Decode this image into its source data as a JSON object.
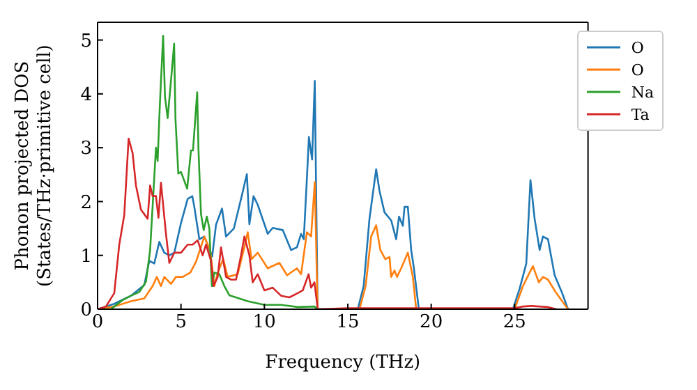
{
  "chart_data": {
    "type": "line",
    "xlabel": "Frequency (THz)",
    "ylabel": "Phonon projected DOS\n(States/THz·primitive cell)",
    "xlim": [
      0,
      29.4
    ],
    "ylim": [
      0,
      5.33
    ],
    "xticks": [
      0,
      5,
      10,
      15,
      20,
      25
    ],
    "yticks": [
      0,
      1,
      2,
      3,
      4,
      5
    ],
    "legend": "top right",
    "line_style": "solid",
    "marker": "none",
    "series": [
      {
        "name": "O",
        "color": "#1f77b4",
        "x": [
          0,
          1,
          2,
          2.8,
          3.1,
          3.4,
          3.7,
          4.0,
          4.3,
          4.6,
          5.0,
          5.4,
          5.68,
          5.8,
          6.1,
          6.4,
          6.87,
          7.1,
          7.46,
          7.7,
          8.17,
          8.64,
          8.95,
          9.1,
          9.35,
          9.6,
          10.2,
          10.5,
          11.1,
          11.6,
          11.95,
          12.2,
          12.36,
          12.55,
          12.67,
          12.86,
          13.02,
          13.19,
          15.6,
          15.95,
          16.3,
          16.7,
          16.9,
          17.2,
          17.6,
          17.9,
          18.07,
          18.3,
          18.4,
          18.6,
          18.8,
          18.95,
          19.26,
          24.9,
          25.3,
          25.7,
          25.95,
          26.2,
          26.5,
          26.7,
          27.0,
          27.4,
          27.85,
          28.2
        ],
        "values": [
          0,
          0.1,
          0.25,
          0.45,
          0.9,
          0.85,
          1.25,
          1.05,
          1.0,
          1.05,
          1.6,
          2.05,
          2.1,
          1.9,
          1.3,
          1.35,
          0.98,
          1.57,
          1.87,
          1.35,
          1.5,
          2.1,
          2.51,
          1.58,
          2.1,
          1.94,
          1.4,
          1.51,
          1.47,
          1.1,
          1.15,
          1.4,
          1.3,
          2.44,
          3.2,
          2.78,
          4.24,
          0,
          0,
          0.43,
          1.68,
          2.6,
          2.2,
          1.8,
          1.65,
          1.3,
          1.72,
          1.55,
          1.9,
          1.9,
          1.1,
          0.79,
          0,
          0,
          0.38,
          0.85,
          2.4,
          1.68,
          1.1,
          1.35,
          1.3,
          0.63,
          0.3,
          0
        ]
      },
      {
        "name": "O",
        "color": "#ff7f0e",
        "x": [
          0,
          1,
          2,
          2.8,
          3.3,
          3.55,
          3.8,
          4.0,
          4.4,
          4.7,
          5.1,
          5.56,
          5.9,
          6.4,
          6.75,
          7.0,
          7.2,
          7.53,
          7.8,
          8.4,
          8.76,
          9.0,
          9.23,
          9.6,
          10.2,
          10.9,
          11.36,
          11.95,
          12.2,
          12.55,
          12.8,
          13.02,
          13.19,
          15.7,
          16.07,
          16.4,
          16.7,
          16.95,
          17.25,
          17.5,
          17.6,
          17.8,
          17.95,
          18.2,
          18.6,
          18.9,
          19.1,
          25.0,
          25.5,
          25.9,
          26.1,
          26.45,
          26.7,
          27.0,
          27.5,
          28.2
        ],
        "values": [
          0,
          0.05,
          0.15,
          0.2,
          0.43,
          0.6,
          0.43,
          0.6,
          0.47,
          0.6,
          0.6,
          0.68,
          0.88,
          1.35,
          1.1,
          0.43,
          0.68,
          0.93,
          0.6,
          0.65,
          1.1,
          1.43,
          0.93,
          1.05,
          0.76,
          0.86,
          0.63,
          0.76,
          0.65,
          1.43,
          1.35,
          2.36,
          0,
          0,
          0.43,
          1.35,
          1.56,
          1.1,
          0.93,
          0.97,
          0.6,
          0.72,
          0.6,
          0.76,
          1.05,
          0.6,
          0,
          0,
          0.43,
          0.68,
          0.8,
          0.5,
          0.6,
          0.55,
          0.3,
          0
        ]
      },
      {
        "name": "Na",
        "color": "#2ca02c",
        "x": [
          0,
          0.8,
          1,
          1.5,
          2,
          2.5,
          2.9,
          3.15,
          3.5,
          3.6,
          3.73,
          3.93,
          4.04,
          4.2,
          4.36,
          4.59,
          4.67,
          4.84,
          5.0,
          5.37,
          5.6,
          5.72,
          5.97,
          6.05,
          6.2,
          6.36,
          6.55,
          6.7,
          6.85,
          7.0,
          7.3,
          7.6,
          7.9,
          9,
          10,
          11,
          12,
          13,
          13.2
        ],
        "values": [
          0,
          0,
          0.05,
          0.17,
          0.25,
          0.32,
          0.51,
          1.1,
          3.0,
          2.75,
          3.78,
          5.08,
          3.95,
          3.55,
          4.1,
          4.93,
          3.53,
          2.52,
          2.55,
          2.24,
          2.95,
          2.95,
          4.03,
          2.95,
          1.77,
          1.47,
          1.72,
          1.5,
          0.43,
          0.68,
          0.65,
          0.43,
          0.26,
          0.15,
          0.08,
          0.08,
          0.04,
          0.05,
          0
        ]
      },
      {
        "name": "Ta",
        "color": "#d62728",
        "x": [
          0,
          0.5,
          1,
          1.3,
          1.6,
          1.86,
          2.1,
          2.3,
          2.6,
          3.0,
          3.15,
          3.3,
          3.5,
          3.65,
          3.8,
          4.1,
          4.3,
          4.6,
          5.0,
          5.4,
          5.7,
          6.0,
          6.3,
          6.5,
          6.8,
          6.95,
          7.2,
          7.4,
          7.7,
          8.0,
          8.3,
          8.6,
          8.8,
          9.1,
          9.3,
          9.6,
          10,
          10.5,
          11,
          11.5,
          12,
          12.3,
          12.65,
          12.8,
          13.0,
          13.2,
          15,
          19,
          25,
          25.5,
          26,
          26.5,
          27,
          27.5
        ],
        "values": [
          0,
          0.05,
          0.3,
          1.2,
          1.75,
          3.17,
          2.9,
          2.3,
          1.85,
          1.68,
          2.3,
          2.1,
          2.1,
          1.7,
          2.35,
          1.4,
          0.86,
          1.05,
          1.05,
          1.2,
          1.2,
          1.28,
          1.0,
          1.2,
          0.9,
          0.43,
          0.6,
          1.15,
          0.6,
          0.55,
          0.55,
          1.0,
          1.35,
          1.0,
          0.5,
          0.65,
          0.35,
          0.4,
          0.25,
          0.22,
          0.3,
          0.35,
          0.65,
          0.4,
          0.5,
          0,
          0.02,
          0.02,
          0.02,
          0.05,
          0.06,
          0.05,
          0.04,
          0
        ]
      }
    ]
  }
}
